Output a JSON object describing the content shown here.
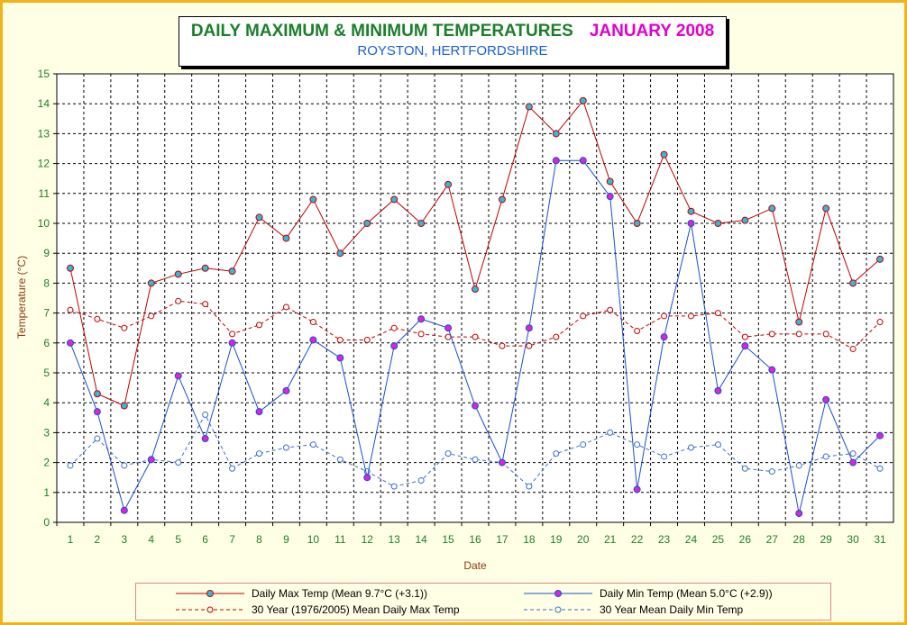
{
  "header": {
    "title": "DAILY MAXIMUM &  MINIMUM  TEMPERATURES",
    "title_month": "JANUARY 2008",
    "subtitle": "ROYSTON, HERTFORDSHIRE"
  },
  "colors": {
    "max": "#c00000",
    "min": "#1a4fd0",
    "marker_max": "#33b8d8",
    "marker_min": "#e020e0",
    "avg_max": "#c00000",
    "avg_min": "#3a6fd0",
    "tick_text": "#1b7f2a",
    "axis_label": "#8b3a10",
    "frame": "#f2b21a",
    "background": "#ffffe6"
  },
  "chart_data": {
    "type": "line",
    "title": "DAILY MAXIMUM &  MINIMUM  TEMPERATURES  JANUARY 2008",
    "subtitle": "ROYSTON, HERTFORDSHIRE",
    "xlabel": "Date",
    "ylabel": "Temperature (°C)",
    "ylim": [
      0,
      15
    ],
    "yticks": [
      0,
      1,
      2,
      3,
      4,
      5,
      6,
      7,
      8,
      9,
      10,
      11,
      12,
      13,
      14,
      15
    ],
    "grid": true,
    "legend_position": "bottom",
    "x": [
      1,
      2,
      3,
      4,
      5,
      6,
      7,
      8,
      9,
      10,
      11,
      12,
      13,
      14,
      15,
      16,
      17,
      18,
      19,
      20,
      21,
      22,
      23,
      24,
      25,
      26,
      27,
      28,
      29,
      30,
      31
    ],
    "series": [
      {
        "name": "Daily Max Temp (Mean 9.7°C (+3.1))",
        "style": "solid",
        "values": [
          8.5,
          4.3,
          3.9,
          8.0,
          8.3,
          8.5,
          8.4,
          10.2,
          9.5,
          10.8,
          9.0,
          10.0,
          10.8,
          10.0,
          11.3,
          7.8,
          10.8,
          13.9,
          13.0,
          14.1,
          11.4,
          10.0,
          12.3,
          10.4,
          10.0,
          10.1,
          10.5,
          6.7,
          10.5,
          8.0,
          8.8
        ]
      },
      {
        "name": "Daily Min Temp (Mean 5.0°C (+2.9))",
        "style": "solid",
        "values": [
          6.0,
          3.7,
          0.4,
          2.1,
          4.9,
          2.8,
          6.0,
          3.7,
          4.4,
          6.1,
          5.5,
          1.5,
          5.9,
          6.8,
          6.5,
          3.9,
          2.0,
          6.5,
          12.1,
          12.1,
          10.9,
          1.1,
          6.2,
          10.0,
          4.4,
          5.9,
          5.1,
          0.3,
          4.1,
          2.0,
          2.9
        ]
      },
      {
        "name": "30 Year (1976/2005) Mean Daily Max Temp",
        "style": "dashed",
        "values": [
          7.1,
          6.8,
          6.5,
          6.9,
          7.4,
          7.3,
          6.3,
          6.6,
          7.2,
          6.7,
          6.1,
          6.1,
          6.5,
          6.3,
          6.2,
          6.2,
          5.9,
          5.9,
          6.2,
          6.9,
          7.1,
          6.4,
          6.9,
          6.9,
          7.0,
          6.2,
          6.3,
          6.3,
          6.3,
          5.8,
          6.7
        ]
      },
      {
        "name": "30 Year Mean Daily Min Temp",
        "style": "dashed",
        "values": [
          1.9,
          2.8,
          1.9,
          2.1,
          2.0,
          3.6,
          1.8,
          2.3,
          2.5,
          2.6,
          2.1,
          1.7,
          1.2,
          1.4,
          2.3,
          2.1,
          2.0,
          1.2,
          2.3,
          2.6,
          3.0,
          2.6,
          2.2,
          2.5,
          2.6,
          1.8,
          1.7,
          1.9,
          2.2,
          2.3,
          1.8
        ]
      }
    ]
  }
}
